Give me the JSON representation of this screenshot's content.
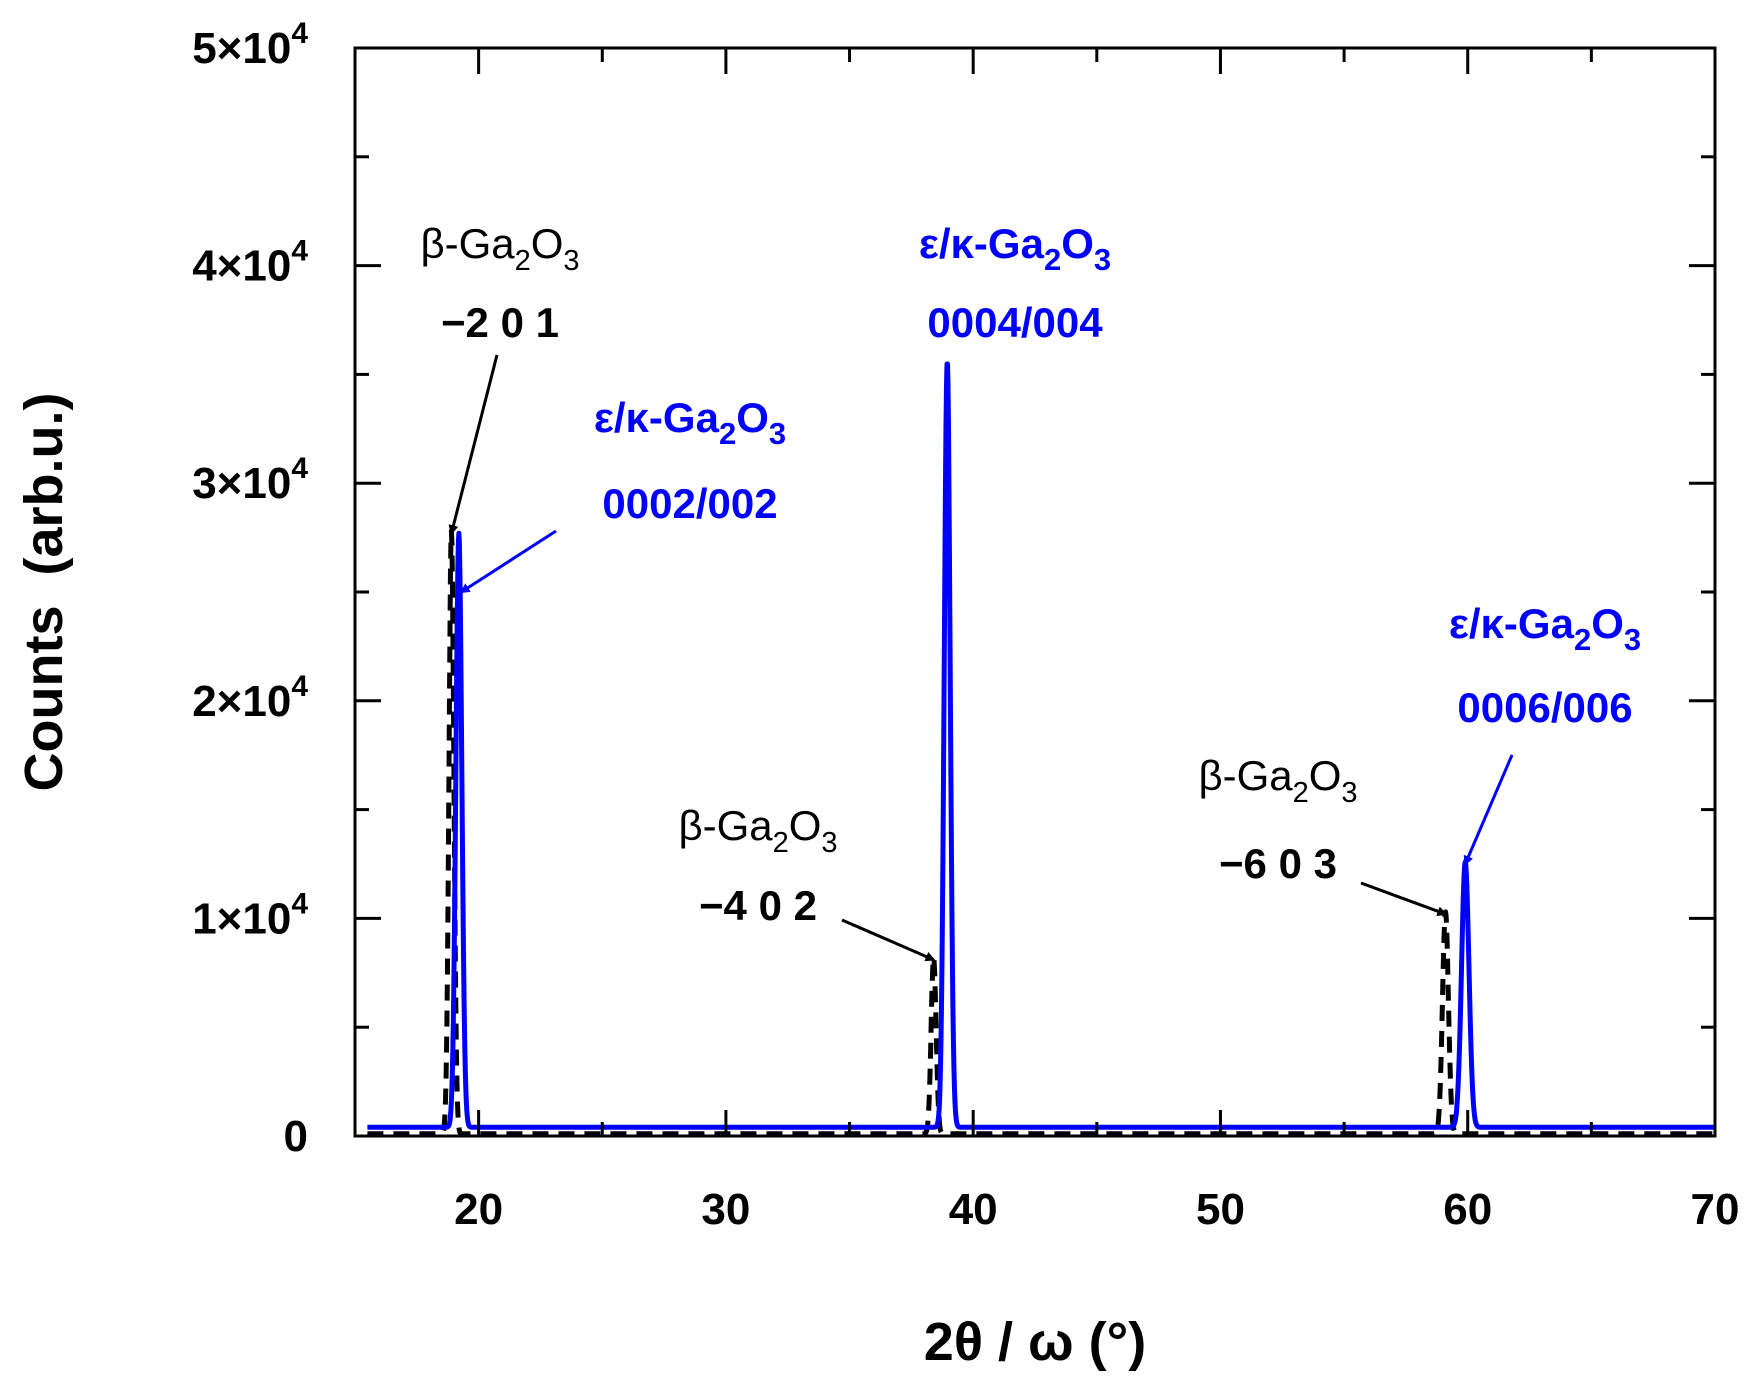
{
  "chart_data": {
    "type": "line",
    "title": "",
    "xlabel": "2θ / ω (°)",
    "ylabel": "Counts  (arb.u.)",
    "xlim": [
      15,
      70
    ],
    "ylim": [
      0,
      50000
    ],
    "grid": false,
    "x_ticks": [
      {
        "value": 20,
        "label": "20"
      },
      {
        "value": 30,
        "label": "30"
      },
      {
        "value": 40,
        "label": "40"
      },
      {
        "value": 50,
        "label": "50"
      },
      {
        "value": 60,
        "label": "60"
      },
      {
        "value": 70,
        "label": "70"
      }
    ],
    "x_minor_ticks": [
      15,
      25,
      35,
      45,
      55,
      65
    ],
    "y_ticks": [
      {
        "value": 0,
        "mantissa": "0",
        "exp": ""
      },
      {
        "value": 10000,
        "mantissa": "1×10",
        "exp": "4"
      },
      {
        "value": 20000,
        "mantissa": "2×10",
        "exp": "4"
      },
      {
        "value": 30000,
        "mantissa": "3×10",
        "exp": "4"
      },
      {
        "value": 40000,
        "mantissa": "4×10",
        "exp": "4"
      },
      {
        "value": 50000,
        "mantissa": "5×10",
        "exp": "4"
      }
    ],
    "y_minor_ticks": [
      5000,
      15000,
      25000,
      35000,
      45000
    ],
    "series": [
      {
        "style": "dashed",
        "color": "#000000",
        "baseline": 100,
        "x_range": [
          15.5,
          70
        ],
        "peaks": [
          {
            "x": 18.9,
            "height": 27700,
            "sigma": 0.1
          },
          {
            "x": 38.4,
            "height": 8100,
            "sigma": 0.1
          },
          {
            "x": 59.1,
            "height": 10200,
            "sigma": 0.12
          }
        ]
      },
      {
        "style": "solid",
        "color": "#0000ff",
        "baseline": 400,
        "x_range": [
          15.5,
          70
        ],
        "peaks": [
          {
            "x": 19.2,
            "height": 27300,
            "sigma": 0.12
          },
          {
            "x": 38.95,
            "height": 35200,
            "sigma": 0.12
          },
          {
            "x": 59.9,
            "height": 12200,
            "sigma": 0.15
          }
        ]
      }
    ],
    "annotations": [
      {
        "id": "beta-201",
        "color": "#000000",
        "lines": [
          {
            "kind": "formula",
            "parts": [
              "β-Ga",
              "2",
              "O",
              "3"
            ]
          },
          {
            "kind": "text",
            "text": "−2 0 1"
          }
        ],
        "arrow_to": {
          "x": 18.9,
          "y": 27700
        }
      },
      {
        "id": "eps-0002",
        "color": "#0000ff",
        "lines": [
          {
            "kind": "formula",
            "parts": [
              "ε/κ-Ga",
              "2",
              "O",
              "3"
            ]
          },
          {
            "kind": "text",
            "text": "0002/002"
          }
        ],
        "arrow_to": {
          "x": 19.3,
          "y": 25000
        }
      },
      {
        "id": "eps-0004",
        "color": "#0000ff",
        "lines": [
          {
            "kind": "formula",
            "parts": [
              "ε/κ-Ga",
              "2",
              "O",
              "3"
            ]
          },
          {
            "kind": "text",
            "text": "0004/004"
          }
        ],
        "arrow_to": null
      },
      {
        "id": "beta-402",
        "color": "#000000",
        "lines": [
          {
            "kind": "formula",
            "parts": [
              "β-Ga",
              "2",
              "O",
              "3"
            ]
          },
          {
            "kind": "text",
            "text": "−4 0 2"
          }
        ],
        "arrow_to": {
          "x": 38.4,
          "y": 8100
        }
      },
      {
        "id": "beta-603",
        "color": "#000000",
        "lines": [
          {
            "kind": "formula",
            "parts": [
              "β-Ga",
              "2",
              "O",
              "3"
            ]
          },
          {
            "kind": "text",
            "text": "−6 0 3"
          }
        ],
        "arrow_to": {
          "x": 59.1,
          "y": 10200
        }
      },
      {
        "id": "eps-0006",
        "color": "#0000ff",
        "lines": [
          {
            "kind": "formula",
            "parts": [
              "ε/κ-Ga",
              "2",
              "O",
              "3"
            ]
          },
          {
            "kind": "text",
            "text": "0006/006"
          }
        ],
        "arrow_to": {
          "x": 59.9,
          "y": 12500
        }
      }
    ]
  }
}
